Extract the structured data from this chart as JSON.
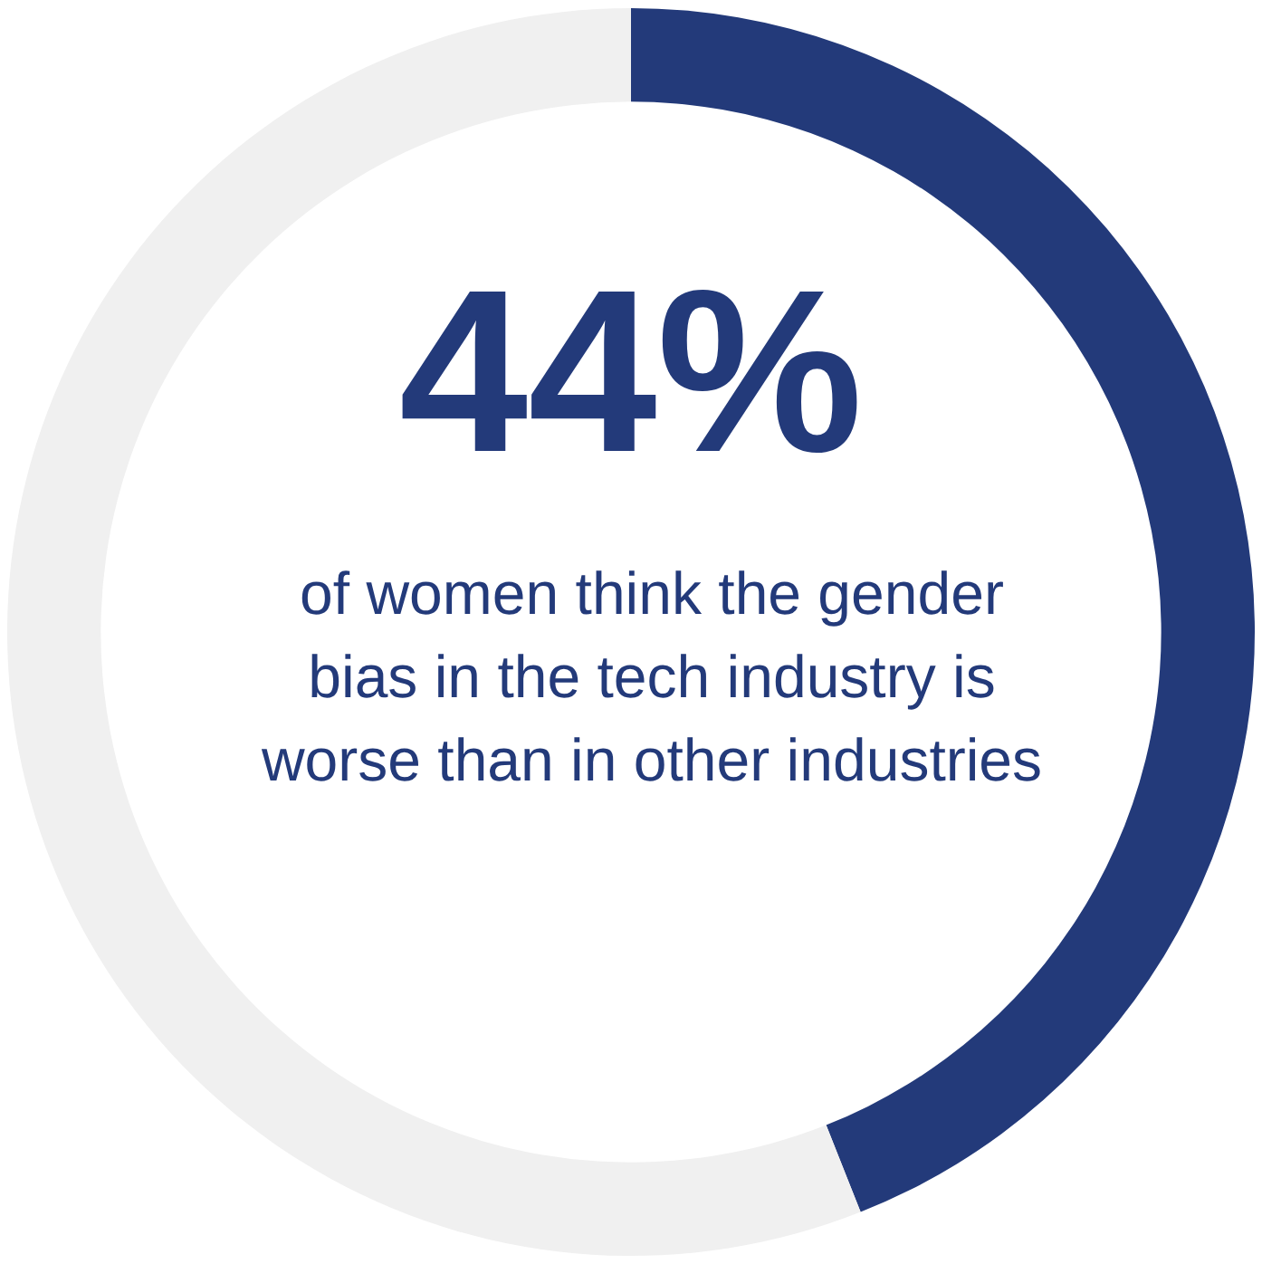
{
  "chart_data": {
    "type": "donut",
    "categories": [
      null,
      null
    ],
    "values": [
      44,
      56
    ],
    "colors": [
      "#233a7a",
      "#f0f0f0"
    ],
    "value_labels": [
      "44%",
      null
    ],
    "annotations": [
      "of women think the gender bias in the tech industry is worse than in other industries"
    ]
  }
}
